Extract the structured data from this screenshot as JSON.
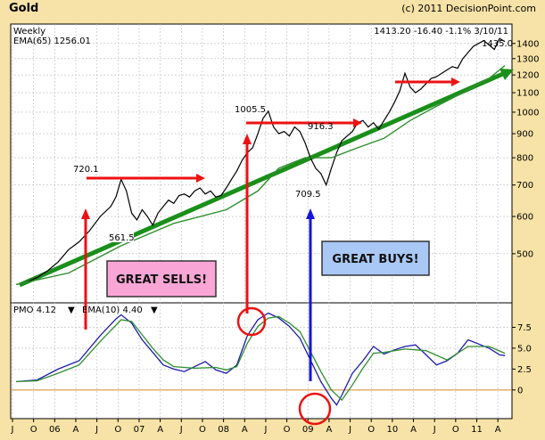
{
  "title": "Gold",
  "copyright": "(c) 2011 DecisionPoint.com",
  "chart_data": [
    {
      "type": "line",
      "panel": "price",
      "header_left_1": "Weekly",
      "header_left_2": "EMA(65) 1256.01",
      "header_right": "1413.20  -16.40  -1.1%  3/10/11",
      "y_scale": "log",
      "ylim": [
        400,
        1500
      ],
      "y_ticks": [
        500,
        600,
        700,
        800,
        900,
        1000,
        1100,
        1200,
        1300,
        1400
      ],
      "x_ticks": [
        "J",
        "O",
        "06",
        "A",
        "J",
        "O",
        "07",
        "A",
        "J",
        "O",
        "08",
        "A",
        "J",
        "O",
        "09",
        "A",
        "J",
        "O",
        "10",
        "A",
        "J",
        "O",
        "11",
        "A"
      ],
      "series": [
        {
          "color": "#000000",
          "values": [
            [
              0,
              430
            ],
            [
              2,
              435
            ],
            [
              4,
              445
            ],
            [
              6,
              460
            ],
            [
              8,
              480
            ],
            [
              10,
              510
            ],
            [
              12,
              530
            ],
            [
              14,
              560
            ],
            [
              16,
              600
            ],
            [
              18,
              630
            ],
            [
              19,
              660
            ],
            [
              20,
              720
            ],
            [
              21,
              680
            ],
            [
              22,
              610
            ],
            [
              23,
              590
            ],
            [
              24,
              620
            ],
            [
              25,
              600
            ],
            [
              26,
              575
            ],
            [
              27,
              610
            ],
            [
              28,
              630
            ],
            [
              29,
              650
            ],
            [
              30,
              640
            ],
            [
              31,
              665
            ],
            [
              32,
              670
            ],
            [
              33,
              660
            ],
            [
              34,
              680
            ],
            [
              35,
              690
            ],
            [
              36,
              670
            ],
            [
              37,
              680
            ],
            [
              38,
              660
            ],
            [
              39,
              665
            ],
            [
              40,
              690
            ],
            [
              41,
              720
            ],
            [
              42,
              750
            ],
            [
              43,
              790
            ],
            [
              44,
              820
            ],
            [
              45,
              840
            ],
            [
              46,
              900
            ],
            [
              47,
              970
            ],
            [
              48,
              1005
            ],
            [
              49,
              930
            ],
            [
              50,
              900
            ],
            [
              51,
              910
            ],
            [
              52,
              890
            ],
            [
              53,
              930
            ],
            [
              54,
              910
            ],
            [
              55,
              860
            ],
            [
              56,
              800
            ],
            [
              57,
              760
            ],
            [
              58,
              740
            ],
            [
              59,
              700
            ],
            [
              60,
              760
            ],
            [
              61,
              820
            ],
            [
              62,
              870
            ],
            [
              63,
              890
            ],
            [
              64,
              910
            ],
            [
              65,
              950
            ],
            [
              66,
              960
            ],
            [
              67,
              930
            ],
            [
              68,
              950
            ],
            [
              69,
              920
            ],
            [
              70,
              960
            ],
            [
              71,
              1000
            ],
            [
              72,
              1050
            ],
            [
              73,
              1110
            ],
            [
              74,
              1210
            ],
            [
              75,
              1130
            ],
            [
              76,
              1100
            ],
            [
              77,
              1120
            ],
            [
              78,
              1150
            ],
            [
              79,
              1180
            ],
            [
              80,
              1190
            ],
            [
              81,
              1210
            ],
            [
              82,
              1230
            ],
            [
              83,
              1250
            ],
            [
              84,
              1240
            ],
            [
              85,
              1300
            ],
            [
              86,
              1340
            ],
            [
              87,
              1380
            ],
            [
              88,
              1400
            ],
            [
              89,
              1420
            ],
            [
              90,
              1390
            ],
            [
              91,
              1360
            ],
            [
              92,
              1435
            ],
            [
              93,
              1413
            ]
          ]
        },
        {
          "name": "EMA(65)",
          "color": "#2f8f2f",
          "values": [
            [
              0,
              430
            ],
            [
              10,
              455
            ],
            [
              20,
              520
            ],
            [
              30,
              580
            ],
            [
              40,
              620
            ],
            [
              46,
              680
            ],
            [
              50,
              760
            ],
            [
              55,
              800
            ],
            [
              60,
              800
            ],
            [
              65,
              840
            ],
            [
              70,
              880
            ],
            [
              75,
              960
            ],
            [
              80,
              1030
            ],
            [
              85,
              1100
            ],
            [
              90,
              1180
            ],
            [
              93,
              1256
            ]
          ]
        }
      ],
      "annotations": {
        "peak_1": "720.1",
        "low_1": "561.5",
        "peak_2": "1005.5",
        "mid_2": "916.3",
        "low_2": "709.5",
        "last": "1435.0",
        "sells_label": "GREAT SELLS!",
        "buys_label": "GREAT BUYS!"
      }
    },
    {
      "type": "line",
      "panel": "pmo",
      "legend_pmo": "PMO  4.12",
      "legend_ema": "EMA(10)  4.40",
      "ylim": [
        -3,
        10
      ],
      "y_ticks": [
        0,
        2.5,
        5.0,
        7.5
      ],
      "series": [
        {
          "name": "PMO",
          "color": "#1c1cb0",
          "values": [
            [
              0,
              1.0
            ],
            [
              4,
              1.2
            ],
            [
              8,
              2.5
            ],
            [
              12,
              3.5
            ],
            [
              16,
              6.5
            ],
            [
              19,
              8.5
            ],
            [
              20,
              9.0
            ],
            [
              22,
              8.0
            ],
            [
              24,
              6.0
            ],
            [
              26,
              4.5
            ],
            [
              28,
              3.0
            ],
            [
              30,
              2.5
            ],
            [
              32,
              2.2
            ],
            [
              34,
              2.8
            ],
            [
              36,
              3.4
            ],
            [
              38,
              2.4
            ],
            [
              40,
              2.0
            ],
            [
              42,
              3.0
            ],
            [
              44,
              6.5
            ],
            [
              46,
              8.4
            ],
            [
              48,
              9.2
            ],
            [
              50,
              8.6
            ],
            [
              52,
              7.6
            ],
            [
              54,
              6.2
            ],
            [
              56,
              3.6
            ],
            [
              58,
              1.0
            ],
            [
              60,
              -1.0
            ],
            [
              61,
              -1.8
            ],
            [
              62,
              -0.6
            ],
            [
              64,
              2.0
            ],
            [
              66,
              3.5
            ],
            [
              68,
              5.2
            ],
            [
              70,
              4.3
            ],
            [
              72,
              4.8
            ],
            [
              74,
              5.2
            ],
            [
              76,
              5.4
            ],
            [
              78,
              4.2
            ],
            [
              80,
              3.0
            ],
            [
              82,
              3.5
            ],
            [
              84,
              4.4
            ],
            [
              86,
              6.0
            ],
            [
              88,
              5.5
            ],
            [
              90,
              5.0
            ],
            [
              92,
              4.2
            ],
            [
              93,
              4.12
            ]
          ]
        },
        {
          "name": "EMA(10)",
          "color": "#2f8f2f",
          "values": [
            [
              0,
              1.0
            ],
            [
              4,
              1.1
            ],
            [
              8,
              2.0
            ],
            [
              12,
              3.0
            ],
            [
              16,
              5.8
            ],
            [
              20,
              8.4
            ],
            [
              22,
              8.2
            ],
            [
              24,
              6.6
            ],
            [
              26,
              5.0
            ],
            [
              28,
              3.6
            ],
            [
              30,
              2.8
            ],
            [
              34,
              2.6
            ],
            [
              38,
              2.7
            ],
            [
              40,
              2.4
            ],
            [
              42,
              2.8
            ],
            [
              44,
              5.6
            ],
            [
              46,
              7.6
            ],
            [
              48,
              8.6
            ],
            [
              50,
              8.8
            ],
            [
              52,
              8.0
            ],
            [
              54,
              7.0
            ],
            [
              56,
              4.6
            ],
            [
              58,
              2.2
            ],
            [
              60,
              0.0
            ],
            [
              62,
              -1.2
            ],
            [
              64,
              0.6
            ],
            [
              66,
              2.6
            ],
            [
              68,
              4.4
            ],
            [
              70,
              4.5
            ],
            [
              74,
              4.9
            ],
            [
              78,
              4.7
            ],
            [
              82,
              3.6
            ],
            [
              86,
              5.2
            ],
            [
              90,
              5.2
            ],
            [
              93,
              4.4
            ]
          ]
        }
      ]
    }
  ]
}
